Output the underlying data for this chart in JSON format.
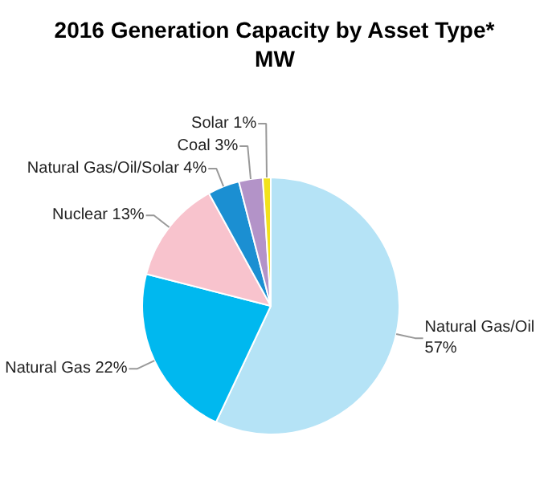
{
  "chart_data": {
    "type": "pie",
    "title": "2016 Generation Capacity by Asset Type*",
    "subtitle": "MW",
    "categories": [
      "Natural Gas/Oil",
      "Natural Gas",
      "Nuclear",
      "Natural Gas/Oil/Solar",
      "Coal",
      "Solar"
    ],
    "values": [
      57,
      22,
      13,
      4,
      3,
      1
    ],
    "value_labels": [
      "57%",
      "22%",
      "13%",
      "4%",
      "3%",
      "1%"
    ],
    "colors": [
      "#b5e3f6",
      "#00b8ef",
      "#f8c3cd",
      "#1b8fd2",
      "#b393c8",
      "#f2e21c"
    ],
    "legend": false
  }
}
